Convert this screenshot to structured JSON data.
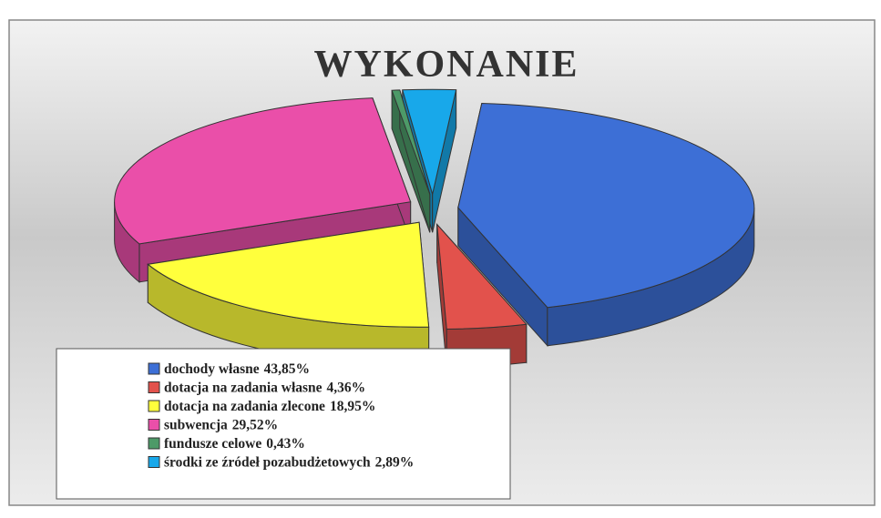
{
  "chart_data": {
    "type": "pie",
    "title": "WYKONANIE",
    "categories": [
      "dochody własne",
      "dotacja na zadania własne",
      "dotacja na zadania zlecone",
      "subwencja",
      "fundusze celowe",
      "środki ze źródeł pozabudżetowych"
    ],
    "values": [
      43.85,
      4.36,
      18.95,
      29.52,
      0.43,
      2.89
    ],
    "value_labels": [
      "43,85%",
      "4,36%",
      "18,95%",
      "29,52%",
      "0,43%",
      "2,89%"
    ],
    "colors": [
      "#3d6fd6",
      "#e2524c",
      "#ffff3c",
      "#ea4fa9",
      "#4d9a68",
      "#18a8ea"
    ],
    "legend": "bottom"
  }
}
